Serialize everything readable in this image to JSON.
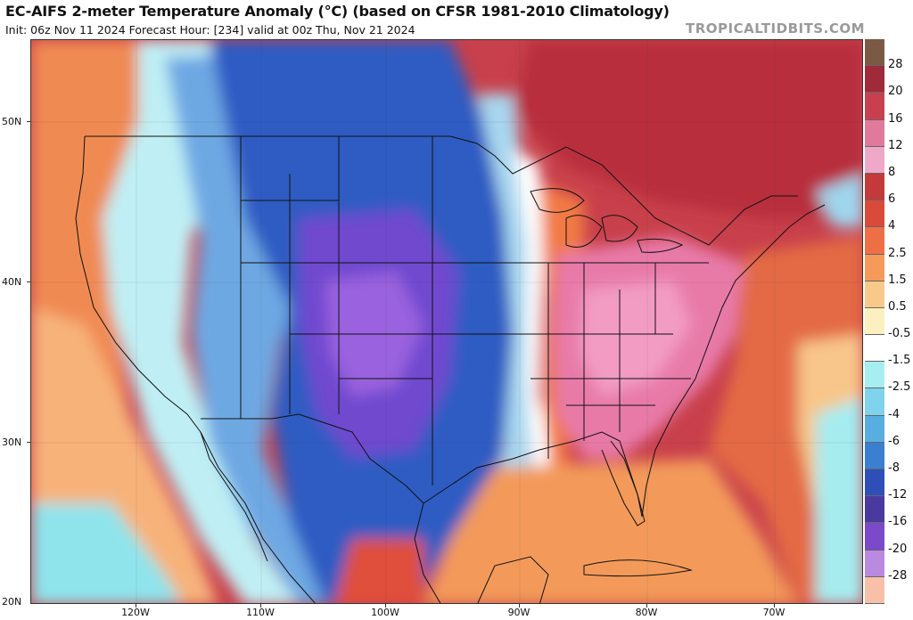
{
  "header": {
    "title": "EC-AIFS 2-meter Temperature Anomaly (°C) (based on CFSR 1981-2010 Climatology)",
    "subtitle": "Init: 06z Nov 11 2024   Forecast Hour: [234]   valid at 00z Thu, Nov 21 2024",
    "brand": "TROPICALTIDBITS.COM"
  },
  "map": {
    "lat_labels": [
      "50N",
      "40N",
      "30N",
      "20N"
    ],
    "lon_labels": [
      "120W",
      "110W",
      "100W",
      "90W",
      "80W",
      "70W"
    ]
  },
  "colorbar": {
    "labels": [
      "28",
      "20",
      "16",
      "12",
      "8",
      "6",
      "4",
      "2.5",
      "1.5",
      "0.5",
      "-0.5",
      "-1.5",
      "-2.5",
      "-4",
      "-6",
      "-8",
      "-12",
      "-16",
      "-20",
      "-28"
    ],
    "colors": [
      "#7a5a44",
      "#9e2a3a",
      "#c8404f",
      "#e0799c",
      "#f0a8c8",
      "#c23a3a",
      "#d94a3a",
      "#ef6f45",
      "#f59a5a",
      "#f9c98a",
      "#fdf0c0",
      "#ffffff",
      "#a6eff0",
      "#7fd3ec",
      "#58aee0",
      "#3b7fd0",
      "#2e4fb8",
      "#4a3aa0",
      "#7a4ac8",
      "#b98ae0",
      "#f8c0a8"
    ]
  },
  "colors": {
    "warm_core": "#e983ad",
    "warm": "#c83f4c",
    "cold_core": "#7a4bd4",
    "cold": "#3a5fc6",
    "neutral": "#ffffff"
  }
}
